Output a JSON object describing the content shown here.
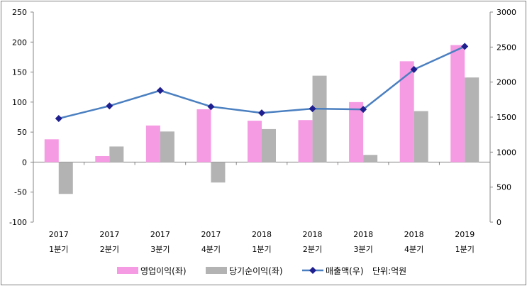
{
  "chart_data": {
    "type": "bar",
    "categories": [
      [
        "2017",
        "1분기"
      ],
      [
        "2017",
        "2분기"
      ],
      [
        "2017",
        "3분기"
      ],
      [
        "2017",
        "4분기"
      ],
      [
        "2018",
        "1분기"
      ],
      [
        "2018",
        "2분기"
      ],
      [
        "2018",
        "3분기"
      ],
      [
        "2018",
        "4분기"
      ],
      [
        "2019",
        "1분기"
      ]
    ],
    "series": [
      {
        "name": "영업이익(좌)",
        "type": "bar",
        "axis": "left",
        "color": "#f59be4",
        "values": [
          38,
          10,
          61,
          88,
          69,
          70,
          100,
          168,
          195
        ]
      },
      {
        "name": "당기순이익(좌)",
        "type": "bar",
        "axis": "left",
        "color": "#b3b3b3",
        "values": [
          -53,
          26,
          51,
          -34,
          55,
          144,
          12,
          85,
          141
        ]
      },
      {
        "name": "매출액(우)",
        "type": "line",
        "axis": "right",
        "color": "#4a7fc0",
        "marker_color": "#1f1f8f",
        "values": [
          1480,
          1660,
          1880,
          1650,
          1560,
          1620,
          1610,
          2180,
          2510
        ]
      }
    ],
    "left_axis": {
      "min": -100,
      "max": 250,
      "ticks": [
        -100,
        -50,
        0,
        50,
        100,
        150,
        200,
        250
      ]
    },
    "right_axis": {
      "min": 0,
      "max": 3000,
      "ticks": [
        0,
        500,
        1000,
        1500,
        2000,
        2500,
        3000
      ]
    },
    "unit_note": "단위:억원",
    "legend_position": "bottom",
    "grid": false
  }
}
